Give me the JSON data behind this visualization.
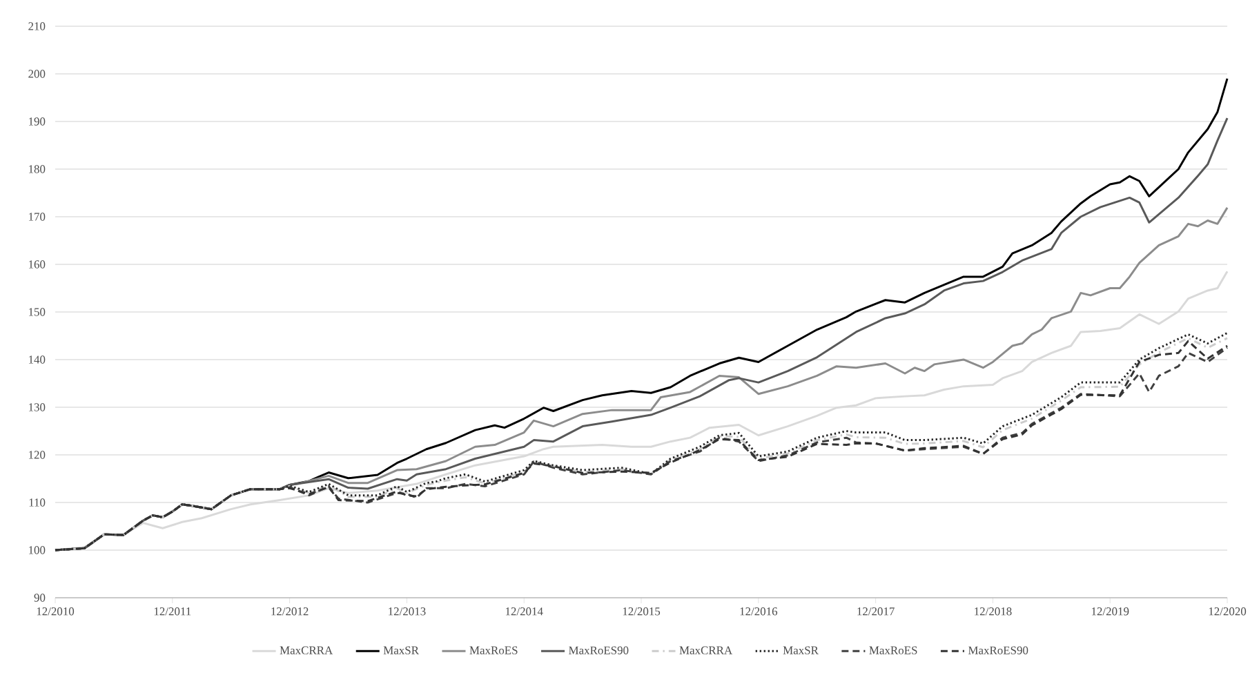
{
  "chart_data": {
    "type": "line",
    "xlim": [
      "2010-12",
      "2020-12"
    ],
    "xticks": [
      {
        "value": "2010-12",
        "label": "12/2010"
      },
      {
        "value": "2011-12",
        "label": "12/2011"
      },
      {
        "value": "2012-12",
        "label": "12/2012"
      },
      {
        "value": "2013-12",
        "label": "12/2013"
      },
      {
        "value": "2014-12",
        "label": "12/2014"
      },
      {
        "value": "2015-12",
        "label": "12/2015"
      },
      {
        "value": "2016-12",
        "label": "12/2016"
      },
      {
        "value": "2017-12",
        "label": "12/2017"
      },
      {
        "value": "2018-12",
        "label": "12/2018"
      },
      {
        "value": "2019-12",
        "label": "12/2019"
      },
      {
        "value": "2020-12",
        "label": "12/2020"
      }
    ],
    "ylim": [
      90,
      210
    ],
    "yticks": [
      90,
      100,
      110,
      120,
      130,
      140,
      150,
      160,
      170,
      180,
      190,
      200,
      210
    ],
    "grid": "y",
    "legend": "bottom",
    "series": [
      {
        "name": "MaxCRRA",
        "color": "#d9d9d9",
        "line_style": "solid",
        "x": [
          "2010-12",
          "2011-03",
          "2011-05",
          "2011-07",
          "2011-09",
          "2011-11",
          "2012-01",
          "2012-03",
          "2012-06",
          "2012-08",
          "2012-11",
          "2013-02",
          "2013-04",
          "2013-06",
          "2013-09",
          "2014-01",
          "2014-04",
          "2014-07",
          "2014-12",
          "2015-02",
          "2015-03",
          "2015-08",
          "2015-11",
          "2016-01",
          "2016-03",
          "2016-05",
          "2016-07",
          "2016-10",
          "2016-12",
          "2017-03",
          "2017-06",
          "2017-08",
          "2017-10",
          "2017-12",
          "2018-03",
          "2018-05",
          "2018-07",
          "2018-09",
          "2018-12",
          "2019-01",
          "2019-03",
          "2019-04",
          "2019-06",
          "2019-08",
          "2019-09",
          "2019-11",
          "2020-01",
          "2020-03",
          "2020-05",
          "2020-07",
          "2020-08",
          "2020-10",
          "2020-11",
          "2020-12"
        ],
        "values": [
          100,
          100.6,
          103.3,
          103.2,
          105.7,
          104.6,
          105.9,
          106.7,
          108.6,
          109.6,
          110.5,
          111.5,
          113,
          112,
          112.5,
          113.9,
          115.9,
          117.8,
          119.7,
          121.2,
          121.7,
          122.1,
          121.7,
          121.7,
          122.8,
          123.6,
          125.7,
          126.3,
          124.1,
          126,
          128.2,
          129.9,
          130.4,
          131.9,
          132.3,
          132.5,
          133.7,
          134.4,
          134.7,
          136.1,
          137.6,
          139.5,
          141.4,
          142.9,
          145.8,
          146,
          146.6,
          149.5,
          147.5,
          150.1,
          152.8,
          154.5,
          155,
          158.5
        ]
      },
      {
        "name": "MaxSR",
        "color": "#000000",
        "line_style": "solid",
        "x": [
          "2010-12",
          "2011-03",
          "2011-05",
          "2011-07",
          "2011-09",
          "2011-10",
          "2011-11",
          "2011-12",
          "2012-01",
          "2012-02",
          "2012-04",
          "2012-06",
          "2012-08",
          "2012-11",
          "2012-12",
          "2013-02",
          "2013-03",
          "2013-04",
          "2013-06",
          "2013-09",
          "2013-11",
          "2013-12",
          "2014-02",
          "2014-04",
          "2014-07",
          "2014-09",
          "2014-10",
          "2014-12",
          "2015-02",
          "2015-03",
          "2015-06",
          "2015-08",
          "2015-11",
          "2016-01",
          "2016-03",
          "2016-05",
          "2016-08",
          "2016-10",
          "2016-12",
          "2017-03",
          "2017-06",
          "2017-09",
          "2017-10",
          "2018-01",
          "2018-03",
          "2018-05",
          "2018-09",
          "2018-11",
          "2019-01",
          "2019-02",
          "2019-04",
          "2019-06",
          "2019-07",
          "2019-09",
          "2019-10",
          "2019-12",
          "2020-01",
          "2020-02",
          "2020-03",
          "2020-04",
          "2020-07",
          "2020-08",
          "2020-10",
          "2020-11",
          "2020-12"
        ],
        "values": [
          100,
          100.4,
          103.3,
          103.2,
          106.2,
          107.3,
          106.9,
          108.1,
          109.6,
          109.3,
          108.6,
          111.5,
          112.8,
          112.8,
          113.7,
          114.5,
          115.4,
          116.3,
          115.1,
          115.8,
          118.3,
          119.2,
          121.2,
          122.5,
          125.2,
          126.2,
          125.7,
          127.6,
          129.9,
          129.2,
          131.5,
          132.5,
          133.4,
          133,
          134.2,
          136.6,
          139.2,
          140.4,
          139.5,
          142.9,
          146.3,
          148.9,
          150.1,
          152.5,
          152,
          154,
          157.4,
          157.4,
          159.5,
          162.3,
          164,
          166.6,
          169,
          172.8,
          174.3,
          176.8,
          177.2,
          178.5,
          177.5,
          174.3,
          180,
          183.5,
          188.4,
          192,
          199
        ]
      },
      {
        "name": "MaxRoES",
        "color": "#8c8c8c",
        "line_style": "solid",
        "x": [
          "2010-12",
          "2011-03",
          "2011-05",
          "2011-07",
          "2011-09",
          "2011-10",
          "2011-11",
          "2011-12",
          "2012-01",
          "2012-02",
          "2012-04",
          "2012-06",
          "2012-08",
          "2012-11",
          "2012-12",
          "2013-01",
          "2013-04",
          "2013-06",
          "2013-08",
          "2013-11",
          "2014-01",
          "2014-04",
          "2014-07",
          "2014-09",
          "2014-12",
          "2015-01",
          "2015-03",
          "2015-06",
          "2015-09",
          "2016-01",
          "2016-02",
          "2016-05",
          "2016-08",
          "2016-10",
          "2016-12",
          "2017-03",
          "2017-06",
          "2017-08",
          "2017-10",
          "2018-01",
          "2018-03",
          "2018-04",
          "2018-05",
          "2018-06",
          "2018-09",
          "2018-11",
          "2018-12",
          "2019-02",
          "2019-03",
          "2019-04",
          "2019-05",
          "2019-06",
          "2019-08",
          "2019-09",
          "2019-10",
          "2019-12",
          "2020-01",
          "2020-02",
          "2020-03",
          "2020-05",
          "2020-07",
          "2020-08",
          "2020-09",
          "2020-10",
          "2020-11",
          "2020-12"
        ],
        "values": [
          100,
          100.4,
          103.3,
          103.2,
          106.2,
          107.3,
          106.9,
          108.1,
          109.6,
          109.3,
          108.6,
          111.5,
          112.8,
          112.8,
          113.7,
          114,
          115.6,
          114.1,
          114.1,
          116.8,
          117,
          118.7,
          121.7,
          122.1,
          124.7,
          127.2,
          126,
          128.6,
          129.4,
          129.4,
          132.1,
          133.2,
          136.6,
          136.3,
          132.8,
          134.4,
          136.6,
          138.6,
          138.3,
          139.2,
          137.1,
          138.3,
          137.6,
          139,
          140,
          138.3,
          139.5,
          142.9,
          143.4,
          145.3,
          146.3,
          148.7,
          150.1,
          154,
          153.5,
          155,
          155,
          157.4,
          160.3,
          164,
          165.9,
          168.5,
          168,
          169.2,
          168.5,
          171.9
        ]
      },
      {
        "name": "MaxRoES90",
        "color": "#595959",
        "line_style": "solid",
        "x": [
          "2010-12",
          "2011-03",
          "2011-05",
          "2011-07",
          "2011-09",
          "2011-10",
          "2011-11",
          "2011-12",
          "2012-01",
          "2012-02",
          "2012-04",
          "2012-06",
          "2012-08",
          "2012-11",
          "2012-12",
          "2013-04",
          "2013-06",
          "2013-08",
          "2013-11",
          "2013-12",
          "2014-01",
          "2014-04",
          "2014-07",
          "2014-12",
          "2015-01",
          "2015-03",
          "2015-06",
          "2015-09",
          "2016-01",
          "2016-03",
          "2016-06",
          "2016-09",
          "2016-10",
          "2016-12",
          "2017-03",
          "2017-06",
          "2017-10",
          "2018-01",
          "2018-03",
          "2018-05",
          "2018-07",
          "2018-09",
          "2018-11",
          "2019-01",
          "2019-03",
          "2019-06",
          "2019-07",
          "2019-09",
          "2019-11",
          "2020-02",
          "2020-03",
          "2020-04",
          "2020-07",
          "2020-09",
          "2020-10",
          "2020-11",
          "2020-12"
        ],
        "values": [
          100,
          100.4,
          103.3,
          103.2,
          106.2,
          107.3,
          106.9,
          108.1,
          109.6,
          109.3,
          108.6,
          111.5,
          112.8,
          112.8,
          113.7,
          114.9,
          113.1,
          112.9,
          114.9,
          114.6,
          115.9,
          117,
          119.2,
          121.7,
          123.1,
          122.8,
          126,
          127,
          128.4,
          129.9,
          132.3,
          135.7,
          136.1,
          135.2,
          137.6,
          140.5,
          145.8,
          148.7,
          149.7,
          151.6,
          154.5,
          156,
          156.5,
          158.4,
          160.8,
          163.2,
          166.6,
          170,
          172,
          174,
          173,
          168.8,
          174,
          178.6,
          181,
          186,
          190.7
        ]
      },
      {
        "name": "MaxCRRA",
        "color": "#cccccc",
        "line_style": "dashdot",
        "x": [
          "2010-12",
          "2011-03",
          "2011-05",
          "2011-07",
          "2011-09",
          "2011-10",
          "2011-11",
          "2011-12",
          "2012-01",
          "2012-02",
          "2012-04",
          "2012-06",
          "2012-08",
          "2012-11",
          "2012-12",
          "2013-02",
          "2013-04",
          "2013-06",
          "2013-09",
          "2013-11",
          "2013-12",
          "2014-02",
          "2014-04",
          "2014-06",
          "2014-08",
          "2014-12",
          "2015-01",
          "2015-03",
          "2015-06",
          "2015-10",
          "2016-01",
          "2016-03",
          "2016-06",
          "2016-08",
          "2016-10",
          "2016-12",
          "2017-03",
          "2017-06",
          "2017-09",
          "2017-10",
          "2018-01",
          "2018-03",
          "2018-05",
          "2018-09",
          "2018-11",
          "2019-01",
          "2019-04",
          "2019-07",
          "2019-09",
          "2020-01",
          "2020-03",
          "2020-05",
          "2020-08",
          "2020-10",
          "2020-12"
        ],
        "values": [
          100,
          100.4,
          103.3,
          103.2,
          106.2,
          107.3,
          106.9,
          108.1,
          109.6,
          109.3,
          108.6,
          111.5,
          112.8,
          112.8,
          113.4,
          112,
          113.6,
          111.2,
          111.2,
          113,
          112,
          113.7,
          114.6,
          115.3,
          114,
          116.4,
          118.6,
          117.6,
          116.4,
          117,
          115.9,
          119,
          121.2,
          123.9,
          123.8,
          119.2,
          120.3,
          123.1,
          124.3,
          123.7,
          123.6,
          122.3,
          122.4,
          122.9,
          121.6,
          125.2,
          127.6,
          131.4,
          134.2,
          134.3,
          139,
          141.5,
          144.5,
          142.5,
          144.5
        ]
      },
      {
        "name": "MaxSR",
        "color": "#262626",
        "line_style": "dotted",
        "x": [
          "2010-12",
          "2011-03",
          "2011-05",
          "2011-07",
          "2011-09",
          "2011-10",
          "2011-11",
          "2011-12",
          "2012-01",
          "2012-02",
          "2012-04",
          "2012-06",
          "2012-08",
          "2012-11",
          "2012-12",
          "2013-02",
          "2013-04",
          "2013-06",
          "2013-09",
          "2013-11",
          "2013-12",
          "2014-02",
          "2014-03",
          "2014-04",
          "2014-06",
          "2014-08",
          "2014-12",
          "2015-01",
          "2015-03",
          "2015-06",
          "2015-10",
          "2016-01",
          "2016-03",
          "2016-06",
          "2016-08",
          "2016-10",
          "2016-12",
          "2017-03",
          "2017-06",
          "2017-09",
          "2017-10",
          "2018-01",
          "2018-03",
          "2018-05",
          "2018-09",
          "2018-11",
          "2019-01",
          "2019-04",
          "2019-07",
          "2019-09",
          "2020-01",
          "2020-03",
          "2020-05",
          "2020-08",
          "2020-10",
          "2020-12"
        ],
        "values": [
          100,
          100.4,
          103.3,
          103.2,
          106.2,
          107.3,
          106.9,
          108.1,
          109.6,
          109.3,
          108.6,
          111.5,
          112.8,
          112.8,
          113.5,
          112.2,
          113.9,
          111.5,
          111.5,
          113.4,
          112.2,
          114.1,
          114.4,
          115.1,
          115.9,
          114.4,
          116.8,
          118.7,
          117.8,
          116.8,
          117.3,
          116,
          119.2,
          121.7,
          124.1,
          124.6,
          119.7,
          120.7,
          123.6,
          125,
          124.7,
          124.7,
          123.1,
          123.1,
          123.6,
          122.4,
          126,
          128.4,
          132.1,
          135.2,
          135.2,
          140,
          142.4,
          145.3,
          143.4,
          145.6
        ]
      },
      {
        "name": "MaxRoES",
        "color": "#404040",
        "line_style": "dashed",
        "x": [
          "2010-12",
          "2011-03",
          "2011-05",
          "2011-07",
          "2011-09",
          "2011-10",
          "2011-11",
          "2011-12",
          "2012-01",
          "2012-02",
          "2012-04",
          "2012-06",
          "2012-08",
          "2012-11",
          "2012-12",
          "2013-02",
          "2013-04",
          "2013-05",
          "2013-08",
          "2013-11",
          "2013-12",
          "2014-01",
          "2014-02",
          "2014-04",
          "2014-06",
          "2014-08",
          "2014-12",
          "2015-01",
          "2015-03",
          "2015-06",
          "2015-10",
          "2016-01",
          "2016-03",
          "2016-06",
          "2016-08",
          "2016-10",
          "2016-12",
          "2017-03",
          "2017-06",
          "2017-09",
          "2017-10",
          "2017-12",
          "2018-03",
          "2018-05",
          "2018-09",
          "2018-11",
          "2019-01",
          "2019-03",
          "2019-04",
          "2019-07",
          "2019-09",
          "2020-01",
          "2020-03",
          "2020-04",
          "2020-05",
          "2020-07",
          "2020-08",
          "2020-10",
          "2020-12"
        ],
        "values": [
          100,
          100.4,
          103.3,
          103.2,
          106.2,
          107.3,
          106.9,
          108.1,
          109.6,
          109.3,
          108.6,
          111.5,
          112.8,
          112.8,
          113.2,
          111.5,
          113.4,
          110.8,
          110,
          112,
          111.8,
          111,
          113,
          113,
          113.9,
          113.4,
          115.9,
          118.6,
          117.3,
          115.9,
          116.8,
          115.9,
          118.7,
          120.7,
          123.6,
          122.8,
          118.7,
          119.9,
          122.6,
          123.6,
          122.6,
          122.4,
          120.9,
          121.2,
          121.7,
          120.2,
          123.6,
          124.6,
          126.5,
          129.9,
          132.8,
          132.3,
          137.1,
          133.2,
          136.6,
          138.6,
          141.4,
          139.5,
          142.5
        ]
      },
      {
        "name": "MaxRoES90",
        "color": "#333333",
        "line_style": "dashed",
        "x": [
          "2010-12",
          "2011-03",
          "2011-05",
          "2011-07",
          "2011-09",
          "2011-10",
          "2011-11",
          "2011-12",
          "2012-01",
          "2012-02",
          "2012-04",
          "2012-06",
          "2012-08",
          "2012-11",
          "2012-12",
          "2013-02",
          "2013-04",
          "2013-05",
          "2013-08",
          "2013-11",
          "2013-12",
          "2014-01",
          "2014-02",
          "2014-04",
          "2014-06",
          "2014-08",
          "2014-12",
          "2015-01",
          "2015-03",
          "2015-06",
          "2015-10",
          "2016-01",
          "2016-03",
          "2016-06",
          "2016-08",
          "2016-10",
          "2016-12",
          "2017-03",
          "2017-06",
          "2017-09",
          "2017-10",
          "2017-12",
          "2018-03",
          "2018-05",
          "2018-09",
          "2018-11",
          "2019-01",
          "2019-03",
          "2019-04",
          "2019-07",
          "2019-09",
          "2020-01",
          "2020-03",
          "2020-05",
          "2020-07",
          "2020-08",
          "2020-10",
          "2020-12"
        ],
        "values": [
          100,
          100.4,
          103.3,
          103.2,
          106.2,
          107.3,
          106.9,
          108.1,
          109.6,
          109.3,
          108.6,
          111.5,
          112.8,
          112.8,
          113,
          111.8,
          113.2,
          110.5,
          110.3,
          112.3,
          111.5,
          111.3,
          112.8,
          113.3,
          113.6,
          113.8,
          116.2,
          118.2,
          117.6,
          116.2,
          116.5,
          116.2,
          118.4,
          121,
          123.3,
          123.1,
          118.9,
          119.6,
          122.3,
          122.1,
          122.4,
          122.4,
          120.9,
          121.4,
          121.9,
          120.2,
          123.3,
          124.3,
          126.2,
          129.6,
          132.6,
          132.5,
          139.5,
          141,
          141.4,
          143.9,
          140.2,
          142.9
        ]
      }
    ]
  }
}
